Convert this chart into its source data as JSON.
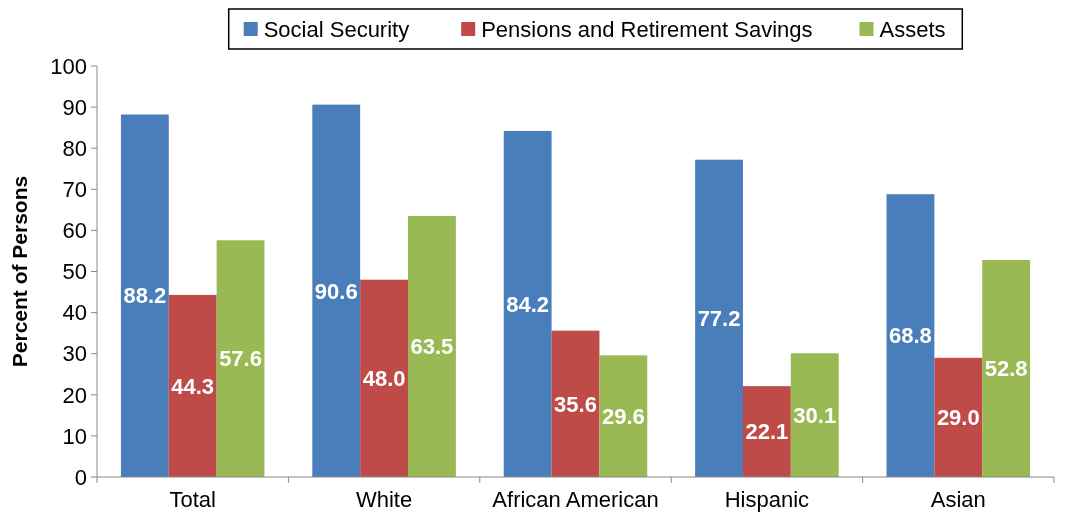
{
  "chart_data": {
    "type": "bar",
    "ylabel": "Percent of Persons",
    "categories": [
      "Total",
      "White",
      "African American",
      "Hispanic",
      "Asian"
    ],
    "series": [
      {
        "name": "Social Security",
        "color": "#4a7ebb",
        "values": [
          88.2,
          90.6,
          84.2,
          77.2,
          68.8
        ],
        "value_labels": [
          "88.2",
          "90.6",
          "84.2",
          "77.2",
          "68.8"
        ]
      },
      {
        "name": "Pensions and Retirement Savings",
        "color": "#be4b48",
        "values": [
          44.3,
          48.0,
          35.6,
          22.1,
          29.0
        ],
        "value_labels": [
          "44.3",
          "48.0",
          "35.6",
          "22.1",
          "29.0"
        ]
      },
      {
        "name": "Assets",
        "color": "#98b954",
        "values": [
          57.6,
          63.5,
          29.6,
          30.1,
          52.8
        ],
        "value_labels": [
          "57.6",
          "63.5",
          "29.6",
          "30.1",
          "52.8"
        ]
      }
    ],
    "ylim": [
      0,
      100
    ],
    "yticks": [
      0,
      10,
      20,
      30,
      40,
      50,
      60,
      70,
      80,
      90,
      100
    ],
    "grid": false,
    "legend": "top"
  }
}
